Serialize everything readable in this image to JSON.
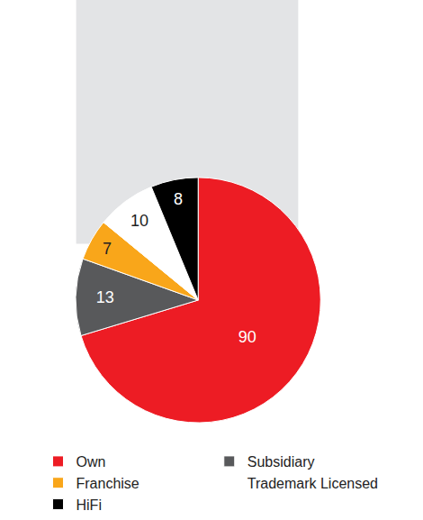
{
  "chart_data": {
    "type": "pie",
    "categories": [
      "Own",
      "Subsidiary",
      "Franchise",
      "Trademark Licensed",
      "HiFi"
    ],
    "values": [
      90,
      13,
      7,
      10,
      8
    ],
    "colors": [
      "#ed1c24",
      "#58595b",
      "#f9a61a",
      "#ffffff",
      "#000000"
    ],
    "data_labels": true,
    "legend": "bottom"
  }
}
